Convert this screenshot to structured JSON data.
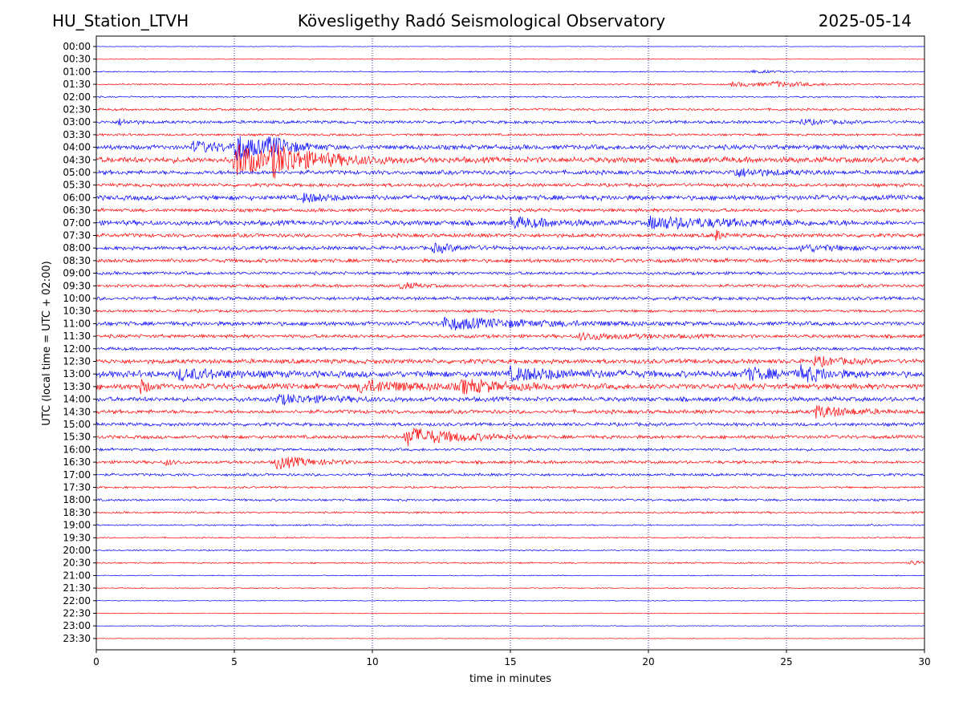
{
  "header": {
    "station": "HU_Station_LTVH",
    "observatory": "Kövesligethy Radó Seismological Observatory",
    "date": "2025-05-14"
  },
  "chart_data": {
    "type": "line",
    "description_kind": "helicorder",
    "xlabel": "time in minutes",
    "ylabel": "UTC (local time = UTC + 02:00)",
    "xlim": [
      0,
      30
    ],
    "xticks": [
      0,
      5,
      10,
      15,
      20,
      25,
      30
    ],
    "vertical_grid": "dotted",
    "trace_colors": [
      "#0000ff",
      "#ff0000"
    ],
    "rows": [
      "00:00",
      "00:30",
      "01:00",
      "01:30",
      "02:00",
      "02:30",
      "03:00",
      "03:30",
      "04:00",
      "04:30",
      "05:00",
      "05:30",
      "06:00",
      "06:30",
      "07:00",
      "07:30",
      "08:00",
      "08:30",
      "09:00",
      "09:30",
      "10:00",
      "10:30",
      "11:00",
      "11:30",
      "12:00",
      "12:30",
      "13:00",
      "13:30",
      "14:00",
      "14:30",
      "15:00",
      "15:30",
      "16:00",
      "16:30",
      "17:00",
      "17:30",
      "18:00",
      "18:30",
      "19:00",
      "19:30",
      "20:00",
      "20:30",
      "21:00",
      "21:30",
      "22:00",
      "22:30",
      "23:00",
      "23:30"
    ],
    "noise_level": [
      0.3,
      0.4,
      0.6,
      0.8,
      0.8,
      1.2,
      1.6,
      1.2,
      2.5,
      3.0,
      2.2,
      1.8,
      2.6,
      1.8,
      2.6,
      2.0,
      2.0,
      2.0,
      1.6,
      1.6,
      1.8,
      1.4,
      2.2,
      1.8,
      1.6,
      2.4,
      3.4,
      3.0,
      2.4,
      2.0,
      1.8,
      1.8,
      1.4,
      1.6,
      1.4,
      1.0,
      1.2,
      1.0,
      0.8,
      0.7,
      0.7,
      0.8,
      0.5,
      0.5,
      0.4,
      0.4,
      0.4,
      0.3
    ],
    "events": [
      {
        "row": 2,
        "minute": 23.5,
        "amp": 2,
        "dur": 1.2
      },
      {
        "row": 3,
        "minute": 23.0,
        "amp": 2.5,
        "dur": 2.0
      },
      {
        "row": 3,
        "minute": 24.5,
        "amp": 2.5,
        "dur": 1.0
      },
      {
        "row": 6,
        "minute": 0.8,
        "amp": 4,
        "dur": 0.4
      },
      {
        "row": 6,
        "minute": 25.5,
        "amp": 3,
        "dur": 1.0
      },
      {
        "row": 8,
        "minute": 3.5,
        "amp": 6,
        "dur": 1.5
      },
      {
        "row": 8,
        "minute": 5.0,
        "amp": 18,
        "dur": 0.8
      },
      {
        "row": 8,
        "minute": 6.2,
        "amp": 10,
        "dur": 1.0
      },
      {
        "row": 9,
        "minute": 5.0,
        "amp": 26,
        "dur": 0.9
      },
      {
        "row": 9,
        "minute": 6.3,
        "amp": 16,
        "dur": 2.0
      },
      {
        "row": 10,
        "minute": 23.0,
        "amp": 5,
        "dur": 1.5
      },
      {
        "row": 12,
        "minute": 7.5,
        "amp": 5,
        "dur": 0.8
      },
      {
        "row": 14,
        "minute": 15.0,
        "amp": 6,
        "dur": 1.5
      },
      {
        "row": 14,
        "minute": 20.0,
        "amp": 7,
        "dur": 3.0
      },
      {
        "row": 15,
        "minute": 22.4,
        "amp": 9,
        "dur": 0.2
      },
      {
        "row": 16,
        "minute": 12.2,
        "amp": 5,
        "dur": 1.0
      },
      {
        "row": 16,
        "minute": 25.5,
        "amp": 4,
        "dur": 1.5
      },
      {
        "row": 19,
        "minute": 11.0,
        "amp": 4,
        "dur": 0.6
      },
      {
        "row": 22,
        "minute": 12.5,
        "amp": 7,
        "dur": 3.0
      },
      {
        "row": 23,
        "minute": 17.5,
        "amp": 4,
        "dur": 2.0
      },
      {
        "row": 25,
        "minute": 26.0,
        "amp": 5,
        "dur": 1.0
      },
      {
        "row": 26,
        "minute": 3.0,
        "amp": 6,
        "dur": 1.5
      },
      {
        "row": 26,
        "minute": 15.0,
        "amp": 7,
        "dur": 2.0
      },
      {
        "row": 26,
        "minute": 23.5,
        "amp": 7,
        "dur": 1.2
      },
      {
        "row": 26,
        "minute": 25.5,
        "amp": 8,
        "dur": 1.0
      },
      {
        "row": 27,
        "minute": 1.6,
        "amp": 8,
        "dur": 0.3
      },
      {
        "row": 27,
        "minute": 9.5,
        "amp": 7,
        "dur": 2.0
      },
      {
        "row": 27,
        "minute": 13.2,
        "amp": 7,
        "dur": 1.5
      },
      {
        "row": 28,
        "minute": 6.5,
        "amp": 5,
        "dur": 2.0
      },
      {
        "row": 29,
        "minute": 26.0,
        "amp": 8,
        "dur": 1.2
      },
      {
        "row": 31,
        "minute": 11.2,
        "amp": 12,
        "dur": 1.8
      },
      {
        "row": 33,
        "minute": 6.5,
        "amp": 8,
        "dur": 1.2
      },
      {
        "row": 33,
        "minute": 2.5,
        "amp": 4,
        "dur": 0.3
      },
      {
        "row": 41,
        "minute": 29.5,
        "amp": 3,
        "dur": 0.6
      }
    ]
  }
}
